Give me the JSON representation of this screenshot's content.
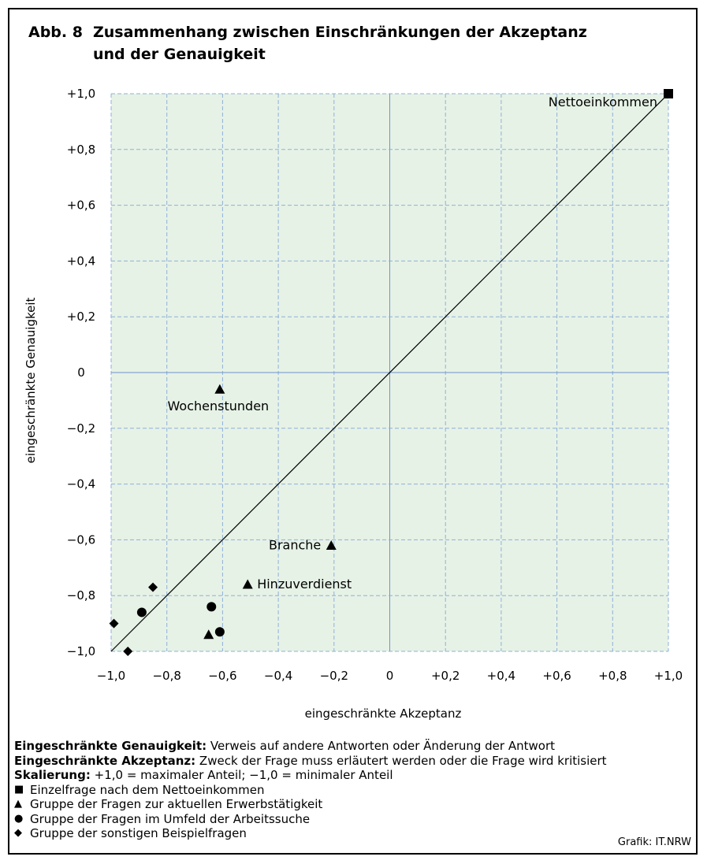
{
  "title": {
    "number": "Abb. 8",
    "line1": "Zusammenhang zwischen Einschränkungen der Akzeptanz",
    "line2": "und der Genauigkeit"
  },
  "chart_data": {
    "type": "scatter",
    "xlabel": "eingeschränkte Akzeptanz",
    "ylabel": "eingeschränkte Genauigkeit",
    "xlim": [
      -1.0,
      1.0
    ],
    "ylim": [
      -1.0,
      1.0
    ],
    "grid": true,
    "xticks": [
      -1.0,
      -0.8,
      -0.6,
      -0.4,
      -0.2,
      0,
      0.2,
      0.4,
      0.6,
      0.8,
      1.0
    ],
    "xtick_labels": [
      "−1,0",
      "−0,8",
      "−0,6",
      "−0,4",
      "−0,2",
      "0",
      "+0,2",
      "+0,4",
      "+0,6",
      "+0,8",
      "+1,0"
    ],
    "yticks": [
      1.0,
      0.8,
      0.6,
      0.4,
      0.2,
      0,
      -0.2,
      -0.4,
      -0.6,
      -0.8,
      -1.0
    ],
    "ytick_labels": [
      "+1,0",
      "+0,8",
      "+0,6",
      "+0,4",
      "+0,2",
      "0",
      "−0,2",
      "−0,4",
      "−0,6",
      "−0,8",
      "−1,0"
    ],
    "diagonal": [
      [
        -1.0,
        -1.0
      ],
      [
        1.0,
        1.0
      ]
    ],
    "series": [
      {
        "marker": "square",
        "points": [
          {
            "x": 1.0,
            "y": 1.0,
            "label": "Nettoeinkommen"
          }
        ]
      },
      {
        "marker": "triangle",
        "points": [
          {
            "x": -0.61,
            "y": -0.06,
            "label": "Wochenstunden"
          },
          {
            "x": -0.21,
            "y": -0.62,
            "label": "Branche"
          },
          {
            "x": -0.51,
            "y": -0.76,
            "label": "Hinzuverdienst"
          },
          {
            "x": -0.65,
            "y": -0.94,
            "label": ""
          }
        ]
      },
      {
        "marker": "circle",
        "points": [
          {
            "x": -0.64,
            "y": -0.84,
            "label": ""
          },
          {
            "x": -0.61,
            "y": -0.93,
            "label": ""
          },
          {
            "x": -0.89,
            "y": -0.86,
            "label": ""
          }
        ]
      },
      {
        "marker": "diamond",
        "points": [
          {
            "x": -0.85,
            "y": -0.77,
            "label": ""
          },
          {
            "x": -0.99,
            "y": -0.9,
            "label": ""
          },
          {
            "x": -0.94,
            "y": -1.0,
            "label": ""
          }
        ]
      }
    ]
  },
  "notes": {
    "genauigkeit_label": "Eingeschränkte Genauigkeit:",
    "genauigkeit_text": " Verweis auf andere Antworten oder Änderung der Antwort",
    "akzeptanz_label": "Eingeschränkte Akzeptanz:",
    "akzeptanz_text": " Zweck der Frage muss erläutert werden oder die Frage wird kritisiert",
    "skalierung_label": "Skalierung:",
    "skalierung_text": " +1,0 = maximaler Anteil; −1,0 = minimaler Anteil"
  },
  "legend": {
    "square": "Einzelfrage nach dem Nettoeinkommen",
    "triangle": "Gruppe der Fragen zur aktuellen Erwerbstätigkeit",
    "circle": "Gruppe der Fragen im Umfeld der Arbeitssuche",
    "diamond": "Gruppe der sonstigen Beispielfragen",
    "symbols": {
      "square": "■",
      "triangle": "▲",
      "circle": "●",
      "diamond": "◆"
    }
  },
  "credit": "Grafik: IT.NRW",
  "colors": {
    "plot_background": "#e6f2e6",
    "grid": "#8fb0d8",
    "axis_zero": "#6f93cc",
    "marker": "#000000"
  }
}
